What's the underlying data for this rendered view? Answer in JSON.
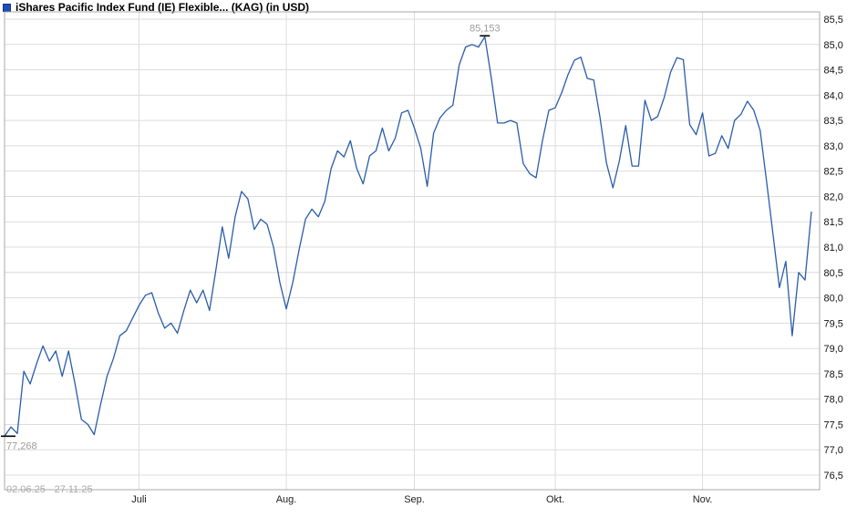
{
  "header": {
    "title": "iShares Pacific Index Fund (IE) Flexible... (KAG) (in USD)"
  },
  "colors": {
    "background": "#ffffff",
    "line": "#2a5caa",
    "grid": "#dcdcdc",
    "frame": "#a8a8a8",
    "axis_text": "#111111",
    "month_text": "#222222",
    "annotation_text": "#9c9c9c",
    "annotation_tick": "#000000",
    "period_text": "#aaaaaa",
    "icon_fill": "#1b4fb8",
    "icon_border": "#123a7d"
  },
  "chart_data": {
    "type": "line",
    "title": "iShares Pacific Index Fund (IE) Flexible... (KAG) (in USD)",
    "period_label": "02.06.25 - 27.11.25",
    "legend": "none",
    "grid": true,
    "ylim": [
      76.5,
      85.5
    ],
    "y_ticks": [
      {
        "v": 85.5,
        "label": "85,5"
      },
      {
        "v": 85.0,
        "label": "85,0"
      },
      {
        "v": 84.5,
        "label": "84,5"
      },
      {
        "v": 84.0,
        "label": "84,0"
      },
      {
        "v": 83.5,
        "label": "83,5"
      },
      {
        "v": 83.0,
        "label": "83,0"
      },
      {
        "v": 82.5,
        "label": "82,5"
      },
      {
        "v": 82.0,
        "label": "82,0"
      },
      {
        "v": 81.5,
        "label": "81,5"
      },
      {
        "v": 81.0,
        "label": "81,0"
      },
      {
        "v": 80.5,
        "label": "80,5"
      },
      {
        "v": 80.0,
        "label": "80,0"
      },
      {
        "v": 79.5,
        "label": "79,5"
      },
      {
        "v": 79.0,
        "label": "79,0"
      },
      {
        "v": 78.5,
        "label": "78,5"
      },
      {
        "v": 78.0,
        "label": "78,0"
      },
      {
        "v": 77.5,
        "label": "77,5"
      },
      {
        "v": 77.0,
        "label": "77,0"
      },
      {
        "v": 76.5,
        "label": "76,5"
      }
    ],
    "months": [
      {
        "label": "Juli",
        "day": 21
      },
      {
        "label": "Aug.",
        "day": 44
      },
      {
        "label": "Sep.",
        "day": 64
      },
      {
        "label": "Okt.",
        "day": 86
      },
      {
        "label": "Nov.",
        "day": 109
      }
    ],
    "max_annotation": {
      "label": "85,153",
      "value": 85.153,
      "day": 75
    },
    "min_annotation": {
      "label": "77,268",
      "value": 77.268,
      "day": 0
    },
    "values": [
      77.27,
      77.45,
      77.32,
      78.55,
      78.3,
      78.7,
      79.05,
      78.75,
      78.95,
      78.45,
      78.95,
      78.3,
      77.6,
      77.5,
      77.3,
      77.9,
      78.45,
      78.8,
      79.25,
      79.35,
      79.6,
      79.85,
      80.05,
      80.1,
      79.7,
      79.4,
      79.5,
      79.3,
      79.75,
      80.15,
      79.9,
      80.15,
      79.75,
      80.55,
      81.4,
      80.78,
      81.6,
      82.1,
      81.95,
      81.35,
      81.55,
      81.45,
      81.0,
      80.3,
      79.78,
      80.3,
      80.95,
      81.55,
      81.75,
      81.6,
      81.9,
      82.55,
      82.9,
      82.78,
      83.1,
      82.55,
      82.25,
      82.8,
      82.9,
      83.35,
      82.9,
      83.15,
      83.65,
      83.7,
      83.35,
      82.95,
      82.2,
      83.25,
      83.55,
      83.7,
      83.8,
      84.6,
      84.95,
      85.0,
      84.95,
      85.153,
      84.35,
      83.45,
      83.45,
      83.5,
      83.45,
      82.65,
      82.45,
      82.37,
      83.1,
      83.7,
      83.75,
      84.05,
      84.41,
      84.69,
      84.75,
      84.33,
      84.3,
      83.55,
      82.66,
      82.17,
      82.7,
      83.4,
      82.6,
      82.6,
      83.9,
      83.5,
      83.58,
      83.95,
      84.45,
      84.74,
      84.7,
      83.42,
      83.22,
      83.65,
      82.8,
      82.85,
      83.2,
      82.95,
      83.5,
      83.62,
      83.88,
      83.7,
      83.3,
      82.3,
      81.25,
      80.2,
      80.72,
      79.25,
      80.5,
      80.35,
      81.7
    ]
  }
}
